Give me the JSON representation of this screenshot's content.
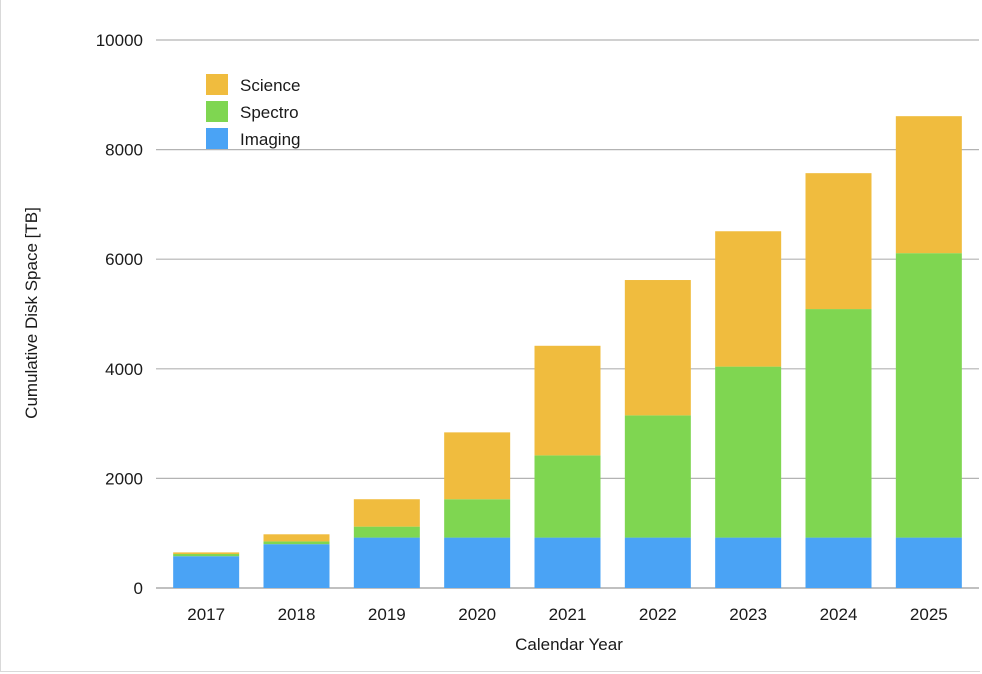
{
  "chart_data": {
    "type": "bar",
    "stacked": true,
    "categories": [
      "2017",
      "2018",
      "2019",
      "2020",
      "2021",
      "2022",
      "2023",
      "2024",
      "2025"
    ],
    "series": [
      {
        "name": "Imaging",
        "color": "#4aa3f5",
        "values": [
          580,
          800,
          920,
          920,
          920,
          920,
          920,
          920,
          920
        ]
      },
      {
        "name": "Spectro",
        "color": "#7fd651",
        "values": [
          40,
          50,
          200,
          700,
          1500,
          2230,
          3120,
          4170,
          5190
        ]
      },
      {
        "name": "Science",
        "color": "#f0bc3e",
        "values": [
          30,
          130,
          500,
          1220,
          2000,
          2470,
          2470,
          2480,
          2500
        ]
      }
    ],
    "xlabel": "Calendar Year",
    "ylabel": "Cumulative Disk Space [TB]",
    "ylim": [
      0,
      10000
    ],
    "yticks": [
      "0",
      "2000",
      "4000",
      "6000",
      "8000",
      "10000"
    ],
    "grid": true,
    "legend": {
      "position": "top-left",
      "order": [
        "Science",
        "Spectro",
        "Imaging"
      ]
    }
  }
}
